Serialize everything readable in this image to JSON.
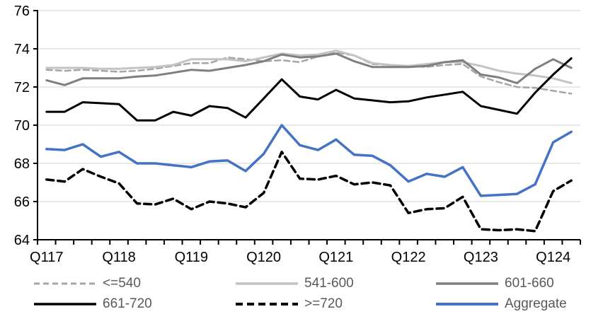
{
  "chart_data": {
    "type": "line",
    "title": "",
    "xlabel": "",
    "ylabel": "",
    "ylim": [
      64,
      76
    ],
    "y_ticks": [
      64,
      66,
      68,
      70,
      72,
      74,
      76
    ],
    "x_labels": [
      "Q117",
      "Q118",
      "Q119",
      "Q120",
      "Q121",
      "Q122",
      "Q123",
      "Q124"
    ],
    "x_label_indices": [
      0,
      4,
      8,
      12,
      16,
      20,
      24,
      28
    ],
    "n_points": 30,
    "grid": "horizontal",
    "legend_position": "bottom",
    "colors": {
      "gridline": "#d9d9d9",
      "axis": "#000000",
      "tick_label": "#000000",
      "legend_text": "#595959"
    },
    "series": [
      {
        "name": "<=540",
        "key": "le-540",
        "color": "#a6a6a6",
        "dash": "8 5",
        "width": 2.5,
        "values": [
          72.9,
          72.85,
          72.9,
          72.85,
          72.8,
          72.85,
          72.95,
          73.1,
          73.25,
          73.25,
          73.55,
          73.45,
          73.35,
          73.4,
          73.3,
          73.6,
          73.8,
          73.65,
          73.2,
          73.15,
          73.1,
          73.05,
          73.15,
          73.2,
          72.55,
          72.25,
          72.0,
          71.95,
          71.8,
          71.65
        ]
      },
      {
        "name": "541-600",
        "key": "541-600",
        "color": "#c3c3c3",
        "dash": null,
        "width": 3,
        "values": [
          73.0,
          73.0,
          73.0,
          72.95,
          72.95,
          73.0,
          73.05,
          73.15,
          73.45,
          73.45,
          73.45,
          73.35,
          73.55,
          73.75,
          73.65,
          73.7,
          73.9,
          73.65,
          73.25,
          73.15,
          73.1,
          73.2,
          73.3,
          73.3,
          73.1,
          72.85,
          72.7,
          72.6,
          72.45,
          72.2
        ]
      },
      {
        "name": "601-660",
        "key": "601-660",
        "color": "#7f7f7f",
        "dash": null,
        "width": 3,
        "values": [
          72.35,
          72.1,
          72.45,
          72.45,
          72.45,
          72.55,
          72.6,
          72.75,
          72.9,
          72.85,
          73.0,
          73.15,
          73.35,
          73.7,
          73.55,
          73.6,
          73.75,
          73.35,
          73.05,
          73.05,
          73.05,
          73.1,
          73.3,
          73.4,
          72.65,
          72.5,
          72.2,
          72.95,
          73.45,
          73.0
        ]
      },
      {
        "name": "661-720",
        "key": "661-720",
        "color": "#000000",
        "dash": null,
        "width": 3,
        "values": [
          70.7,
          70.7,
          71.2,
          71.15,
          71.1,
          70.25,
          70.25,
          70.7,
          70.5,
          71.0,
          70.9,
          70.4,
          71.4,
          72.4,
          71.5,
          71.35,
          71.85,
          71.4,
          71.3,
          71.2,
          71.25,
          71.45,
          71.6,
          71.75,
          71.0,
          70.8,
          70.6,
          71.7,
          72.65,
          73.5
        ]
      },
      {
        "name": ">=720",
        "key": "ge-720",
        "color": "#000000",
        "dash": "10 6",
        "width": 3.5,
        "values": [
          67.15,
          67.05,
          67.7,
          67.3,
          66.95,
          65.9,
          65.85,
          66.15,
          65.6,
          66.0,
          65.9,
          65.7,
          66.45,
          68.6,
          67.2,
          67.15,
          67.35,
          66.9,
          67.0,
          66.85,
          65.4,
          65.6,
          65.65,
          66.25,
          64.55,
          64.5,
          64.55,
          64.45,
          66.55,
          67.1
        ]
      },
      {
        "name": "Aggregate",
        "key": "aggregate",
        "color": "#4472c4",
        "dash": null,
        "width": 3.5,
        "values": [
          68.75,
          68.7,
          69.0,
          68.35,
          68.6,
          68.0,
          68.0,
          67.9,
          67.8,
          68.1,
          68.15,
          67.6,
          68.5,
          70.0,
          68.95,
          68.7,
          69.25,
          68.45,
          68.4,
          67.9,
          67.05,
          67.45,
          67.3,
          67.8,
          66.3,
          66.35,
          66.4,
          66.9,
          69.1,
          69.65
        ]
      }
    ]
  },
  "legend": {
    "row1": [
      "<=540",
      "541-600",
      "601-660"
    ],
    "row2": [
      "661-720",
      ">=720",
      "Aggregate"
    ]
  }
}
